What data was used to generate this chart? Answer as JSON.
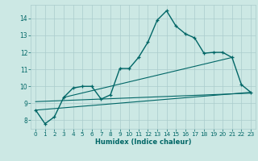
{
  "xlabel": "Humidex (Indice chaleur)",
  "bg_color": "#cce8e4",
  "grid_color": "#aacccc",
  "line_color": "#006666",
  "xlim": [
    -0.5,
    23.5
  ],
  "ylim": [
    7.5,
    14.8
  ],
  "xticks": [
    0,
    1,
    2,
    3,
    4,
    5,
    6,
    7,
    8,
    9,
    10,
    11,
    12,
    13,
    14,
    15,
    16,
    17,
    18,
    19,
    20,
    21,
    22,
    23
  ],
  "yticks": [
    8,
    9,
    10,
    11,
    12,
    13,
    14
  ],
  "main_x": [
    0,
    1,
    2,
    3,
    4,
    5,
    6,
    7,
    8,
    9,
    10,
    11,
    12,
    13,
    14,
    15,
    16,
    17,
    18,
    19,
    20,
    21,
    22,
    23
  ],
  "main_y": [
    8.6,
    7.8,
    8.2,
    9.35,
    9.9,
    10.0,
    10.0,
    9.25,
    9.5,
    11.05,
    11.05,
    11.7,
    12.6,
    13.9,
    14.45,
    13.55,
    13.1,
    12.85,
    11.95,
    12.0,
    12.0,
    11.7,
    10.1,
    9.65
  ],
  "line2_x": [
    0,
    23
  ],
  "line2_y": [
    8.6,
    9.65
  ],
  "line3_x": [
    3,
    21
  ],
  "line3_y": [
    9.35,
    11.7
  ],
  "line4_x": [
    0,
    23
  ],
  "line4_y": [
    9.1,
    9.6
  ]
}
